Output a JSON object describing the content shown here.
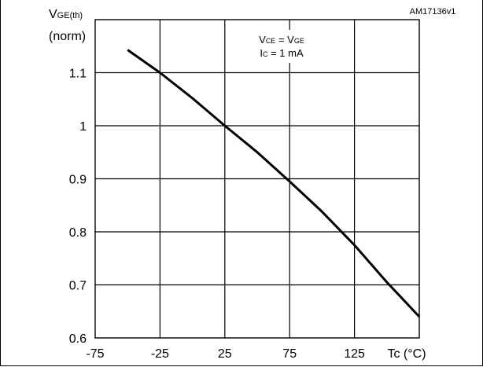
{
  "figure_id": "AM17136v1",
  "chart_data": {
    "type": "line",
    "ylabel": "VGE(th)",
    "ylabel_sub": "(norm)",
    "xlabel": "Tc (°C)",
    "xlim": [
      -75,
      175
    ],
    "ylim": [
      0.6,
      1.2
    ],
    "x_ticks": [
      -75,
      -25,
      25,
      75,
      125
    ],
    "x_tick_labels": [
      "-75",
      "-25",
      "25",
      "75",
      "125"
    ],
    "y_ticks": [
      0.6,
      0.7,
      0.8,
      0.9,
      1.0,
      1.1
    ],
    "y_tick_labels": [
      "0.6",
      "0.7",
      "0.8",
      "0.9",
      "1",
      "1.1"
    ],
    "grid": true,
    "annotation": {
      "line1": "VCE = VGE",
      "line2": "IC = 1 mA"
    },
    "series": [
      {
        "x": [
          -50,
          -25,
          0,
          25,
          50,
          75,
          100,
          125,
          150,
          175
        ],
        "y": [
          1.143,
          1.1,
          1.052,
          1.0,
          0.95,
          0.895,
          0.838,
          0.775,
          0.705,
          0.64
        ]
      }
    ]
  }
}
